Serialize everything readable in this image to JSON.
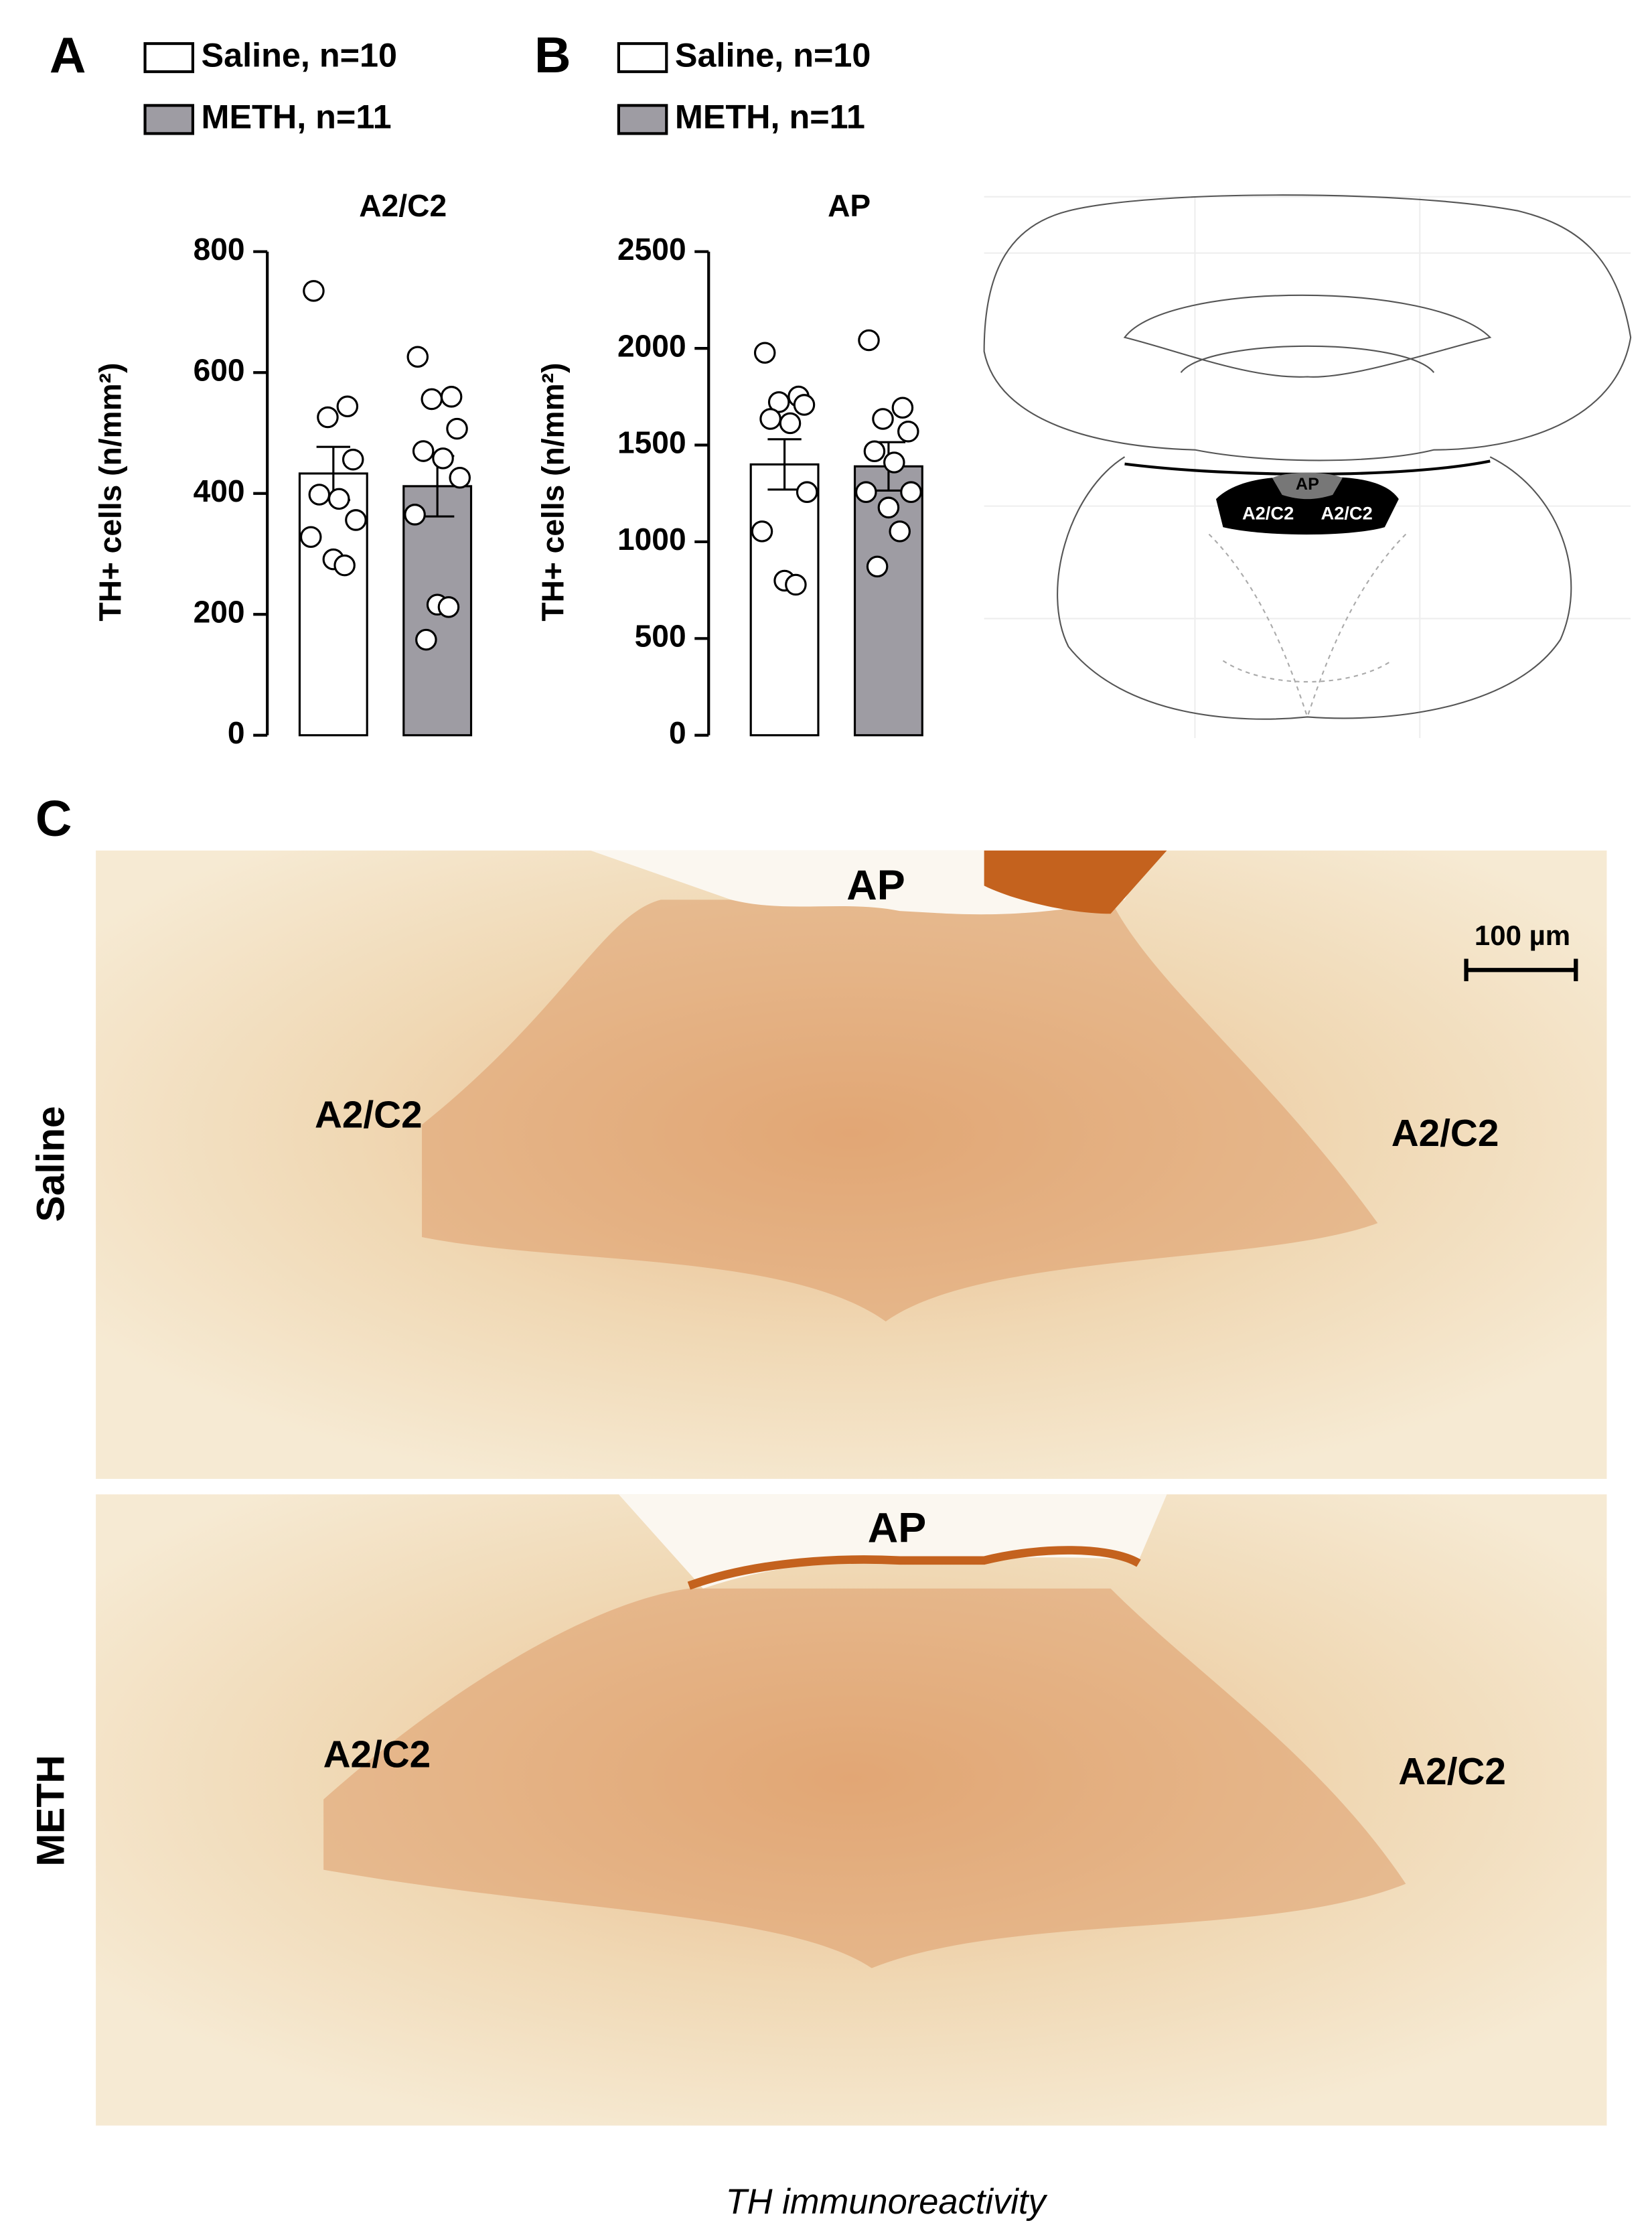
{
  "chart_data": [
    {
      "type": "bar",
      "title": "A2/C2",
      "y_label": "TH+ cells (n/mm²)",
      "categories": [
        null
      ],
      "ylim": [
        0,
        800
      ],
      "yticks": [
        0,
        200,
        400,
        600,
        800
      ],
      "series": [
        {
          "name": "Saline, n=10",
          "color": "#ffffff",
          "values": [
            433
          ],
          "errors": [
            44
          ],
          "points": [
            735,
            544,
            526,
            456,
            398,
            391,
            356,
            328,
            291,
            281
          ]
        },
        {
          "name": "METH, n=11",
          "color": "#9e9ca3",
          "values": [
            412
          ],
          "errors": [
            50
          ],
          "points": [
            626,
            560,
            556,
            507,
            470,
            458,
            426,
            365,
            216,
            212,
            158
          ]
        }
      ]
    },
    {
      "type": "bar",
      "title": "AP",
      "y_label": "TH+ cells (n/mm²)",
      "categories": [
        null
      ],
      "ylim": [
        0,
        2500
      ],
      "yticks": [
        0,
        500,
        1000,
        1500,
        2000,
        2500
      ],
      "series": [
        {
          "name": "Saline, n=10",
          "color": "#ffffff",
          "values": [
            1400
          ],
          "errors": [
            130
          ],
          "points": [
            1977,
            1751,
            1722,
            1708,
            1635,
            1613,
            1257,
            1054,
            799,
            778
          ]
        },
        {
          "name": "METH, n=11",
          "color": "#9e9ca3",
          "values": [
            1390
          ],
          "errors": [
            125
          ],
          "points": [
            2042,
            1693,
            1635,
            1570,
            1468,
            1410,
            1257,
            1257,
            1177,
            1054,
            872
          ]
        }
      ]
    }
  ],
  "panel_labels": [
    "A",
    "B",
    "C"
  ],
  "diagram": {
    "labels": [
      "AP",
      "A2/C2",
      "A2/C2"
    ]
  },
  "micrographs": [
    {
      "condition": "Saline",
      "labels": [
        "AP",
        "A2/C2",
        "A2/C2"
      ],
      "scale_bar": "100 µm"
    },
    {
      "condition": "METH",
      "labels": [
        "AP",
        "A2/C2",
        "A2/C2"
      ]
    }
  ],
  "caption": "TH immunoreactivity"
}
